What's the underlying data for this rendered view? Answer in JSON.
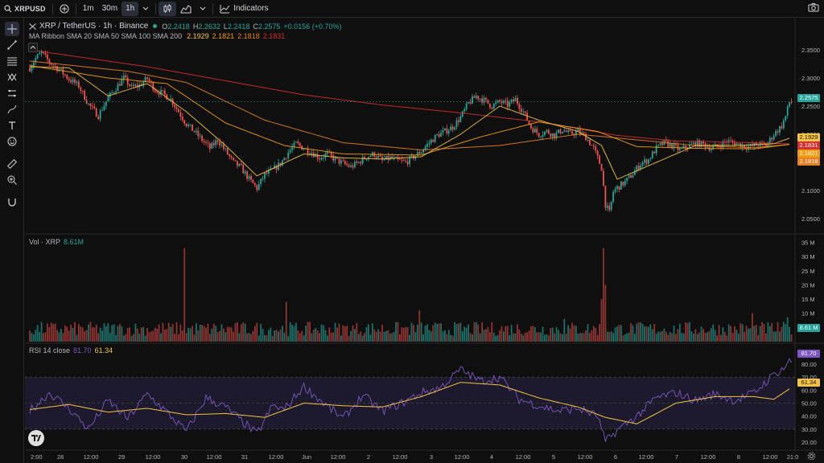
{
  "toolbar": {
    "symbol": "XRPUSD",
    "intervals": [
      "1m",
      "30m",
      "1h"
    ],
    "active_interval": "1h",
    "indicators_label": "Indicators"
  },
  "legend": {
    "title": "XRP / TetherUS · 1h · Binance",
    "ohlc": {
      "o_label": "O",
      "o": "2.2418",
      "h_label": "H",
      "h": "2.2632",
      "l_label": "L",
      "l": "2.2418",
      "c_label": "C",
      "c": "2.2575",
      "change": "+0.0156 (+0.70%)"
    },
    "ribbon_label": "MA Ribbon SMA 20 SMA 50 SMA 100 SMA 200",
    "ribbon_values": [
      "2.1929",
      "2.1821",
      "2.1818",
      "2.1831"
    ],
    "vol_label": "Vol · XRP",
    "vol_value": "8.61M",
    "rsi_label": "RSI 14 close",
    "rsi_value": "81.70",
    "rsi_ma": "61.34"
  },
  "price_axis": {
    "ticks": [
      "2.3500",
      "2.3000",
      "2.2500",
      "2.2000",
      "2.1500",
      "2.1000",
      "2.0500"
    ],
    "current_price": "2.2575",
    "ma_tags": [
      "2.1929",
      "2.1831",
      "2.1821",
      "2.1818"
    ]
  },
  "volume_axis": {
    "ticks": [
      "35 M",
      "30 M",
      "25 M",
      "20 M",
      "15 M",
      "10 M",
      "5 M"
    ],
    "current": "8.61 M"
  },
  "rsi_axis": {
    "ticks": [
      "80.00",
      "70.00",
      "60.00",
      "50.00",
      "40.00",
      "30.00",
      "20.00"
    ],
    "current": "81.70",
    "ma": "61.34"
  },
  "time_axis": {
    "labels": [
      "2:00",
      "28",
      "12:00",
      "29",
      "12:00",
      "30",
      "12:00",
      "31",
      "12:00",
      "Jun",
      "12:00",
      "2",
      "12:00",
      "3",
      "12:00",
      "4",
      "12:00",
      "5",
      "12:00",
      "6",
      "12:00",
      "7",
      "12:00",
      "8",
      "12:00",
      "21:0"
    ]
  },
  "colors": {
    "up": "#26a69a",
    "down": "#ef5350",
    "sma20": "#f5c242",
    "sma50": "#f39c12",
    "sma100": "#e67e22",
    "sma200": "#d32f2f",
    "rsi": "#7e57c2",
    "rsi_ma": "#f5c242"
  },
  "chart_data": {
    "type": "candlestick",
    "symbol": "XRP / TetherUS",
    "interval": "1h",
    "exchange": "Binance",
    "price_range": [
      2.03,
      2.37
    ],
    "price_path": [
      [
        0,
        2.318
      ],
      [
        3,
        2.335
      ],
      [
        6,
        2.345
      ],
      [
        10,
        2.328
      ],
      [
        15,
        2.315
      ],
      [
        20,
        2.298
      ],
      [
        25,
        2.286
      ],
      [
        30,
        2.253
      ],
      [
        35,
        2.233
      ],
      [
        40,
        2.265
      ],
      [
        44,
        2.282
      ],
      [
        48,
        2.3
      ],
      [
        52,
        2.283
      ],
      [
        56,
        2.287
      ],
      [
        60,
        2.299
      ],
      [
        64,
        2.279
      ],
      [
        68,
        2.272
      ],
      [
        72,
        2.262
      ],
      [
        76,
        2.24
      ],
      [
        80,
        2.218
      ],
      [
        84,
        2.205
      ],
      [
        88,
        2.19
      ],
      [
        92,
        2.175
      ],
      [
        96,
        2.19
      ],
      [
        100,
        2.17
      ],
      [
        104,
        2.15
      ],
      [
        108,
        2.14
      ],
      [
        112,
        2.12
      ],
      [
        116,
        2.104
      ],
      [
        120,
        2.128
      ],
      [
        124,
        2.136
      ],
      [
        128,
        2.148
      ],
      [
        132,
        2.168
      ],
      [
        136,
        2.183
      ],
      [
        140,
        2.175
      ],
      [
        144,
        2.168
      ],
      [
        148,
        2.158
      ],
      [
        152,
        2.165
      ],
      [
        156,
        2.155
      ],
      [
        160,
        2.148
      ],
      [
        164,
        2.142
      ],
      [
        168,
        2.15
      ],
      [
        172,
        2.16
      ],
      [
        176,
        2.165
      ],
      [
        180,
        2.153
      ],
      [
        184,
        2.158
      ],
      [
        188,
        2.153
      ],
      [
        192,
        2.15
      ],
      [
        196,
        2.16
      ],
      [
        200,
        2.17
      ],
      [
        204,
        2.185
      ],
      [
        208,
        2.198
      ],
      [
        212,
        2.205
      ],
      [
        216,
        2.213
      ],
      [
        220,
        2.23
      ],
      [
        224,
        2.255
      ],
      [
        228,
        2.268
      ],
      [
        232,
        2.26
      ],
      [
        236,
        2.25
      ],
      [
        240,
        2.258
      ],
      [
        244,
        2.252
      ],
      [
        248,
        2.262
      ],
      [
        252,
        2.24
      ],
      [
        256,
        2.212
      ],
      [
        260,
        2.2
      ],
      [
        264,
        2.205
      ],
      [
        268,
        2.198
      ],
      [
        272,
        2.208
      ],
      [
        276,
        2.2
      ],
      [
        280,
        2.205
      ],
      [
        284,
        2.195
      ],
      [
        288,
        2.175
      ],
      [
        292,
        2.14
      ],
      [
        294,
        2.075
      ],
      [
        296,
        2.06
      ],
      [
        298,
        2.098
      ],
      [
        300,
        2.105
      ],
      [
        304,
        2.115
      ],
      [
        308,
        2.13
      ],
      [
        312,
        2.148
      ],
      [
        316,
        2.155
      ],
      [
        320,
        2.175
      ],
      [
        324,
        2.185
      ],
      [
        328,
        2.18
      ],
      [
        332,
        2.172
      ],
      [
        336,
        2.178
      ],
      [
        340,
        2.184
      ],
      [
        344,
        2.182
      ],
      [
        348,
        2.175
      ],
      [
        352,
        2.18
      ],
      [
        356,
        2.188
      ],
      [
        360,
        2.184
      ],
      [
        364,
        2.18
      ],
      [
        368,
        2.178
      ],
      [
        372,
        2.182
      ],
      [
        376,
        2.18
      ],
      [
        380,
        2.2
      ],
      [
        384,
        2.215
      ],
      [
        386,
        2.232
      ],
      [
        388,
        2.257
      ]
    ],
    "sma_ribbon": {
      "sma20": [
        [
          0,
          2.32
        ],
        [
          20,
          2.318
        ],
        [
          40,
          2.268
        ],
        [
          60,
          2.29
        ],
        [
          80,
          2.24
        ],
        [
          100,
          2.18
        ],
        [
          116,
          2.126
        ],
        [
          140,
          2.165
        ],
        [
          160,
          2.158
        ],
        [
          180,
          2.156
        ],
        [
          200,
          2.16
        ],
        [
          220,
          2.2
        ],
        [
          240,
          2.25
        ],
        [
          260,
          2.225
        ],
        [
          280,
          2.205
        ],
        [
          292,
          2.18
        ],
        [
          300,
          2.12
        ],
        [
          320,
          2.15
        ],
        [
          340,
          2.18
        ],
        [
          360,
          2.18
        ],
        [
          380,
          2.183
        ],
        [
          388,
          2.193
        ]
      ],
      "sma50": [
        [
          0,
          2.322
        ],
        [
          40,
          2.3
        ],
        [
          70,
          2.29
        ],
        [
          100,
          2.22
        ],
        [
          130,
          2.18
        ],
        [
          160,
          2.165
        ],
        [
          200,
          2.163
        ],
        [
          230,
          2.195
        ],
        [
          260,
          2.222
        ],
        [
          290,
          2.205
        ],
        [
          310,
          2.178
        ],
        [
          340,
          2.175
        ],
        [
          370,
          2.174
        ],
        [
          388,
          2.182
        ]
      ],
      "sma100": [
        [
          0,
          2.33
        ],
        [
          50,
          2.312
        ],
        [
          80,
          2.292
        ],
        [
          120,
          2.225
        ],
        [
          160,
          2.185
        ],
        [
          200,
          2.172
        ],
        [
          240,
          2.18
        ],
        [
          280,
          2.2
        ],
        [
          310,
          2.19
        ],
        [
          340,
          2.18
        ],
        [
          370,
          2.176
        ],
        [
          388,
          2.182
        ]
      ],
      "sma200": [
        [
          0,
          2.35
        ],
        [
          60,
          2.32
        ],
        [
          100,
          2.295
        ],
        [
          140,
          2.27
        ],
        [
          180,
          2.252
        ],
        [
          220,
          2.238
        ],
        [
          260,
          2.222
        ],
        [
          300,
          2.198
        ],
        [
          330,
          2.188
        ],
        [
          360,
          2.186
        ],
        [
          388,
          2.183
        ]
      ]
    },
    "volume_range": [
      0,
      36
    ],
    "volume_spikes_M": [
      [
        79,
        33
      ],
      [
        131,
        14
      ],
      [
        199,
        11
      ],
      [
        273,
        8
      ],
      [
        292,
        15
      ],
      [
        293,
        33
      ],
      [
        294,
        20
      ],
      [
        369,
        10
      ],
      [
        387,
        8.61
      ]
    ],
    "rsi_range": [
      15,
      85
    ],
    "rsi_levels": [
      70,
      50,
      30
    ],
    "rsi_path": [
      [
        0,
        44
      ],
      [
        10,
        58
      ],
      [
        20,
        46
      ],
      [
        30,
        30
      ],
      [
        40,
        52
      ],
      [
        50,
        38
      ],
      [
        60,
        57
      ],
      [
        70,
        43
      ],
      [
        80,
        28
      ],
      [
        90,
        54
      ],
      [
        100,
        47
      ],
      [
        110,
        34
      ],
      [
        116,
        26
      ],
      [
        124,
        48
      ],
      [
        130,
        45
      ],
      [
        140,
        63
      ],
      [
        150,
        50
      ],
      [
        160,
        38
      ],
      [
        170,
        56
      ],
      [
        180,
        44
      ],
      [
        190,
        50
      ],
      [
        200,
        58
      ],
      [
        210,
        62
      ],
      [
        220,
        76
      ],
      [
        230,
        67
      ],
      [
        240,
        70
      ],
      [
        250,
        53
      ],
      [
        260,
        48
      ],
      [
        270,
        44
      ],
      [
        280,
        46
      ],
      [
        290,
        40
      ],
      [
        294,
        20
      ],
      [
        300,
        29
      ],
      [
        310,
        40
      ],
      [
        320,
        54
      ],
      [
        330,
        58
      ],
      [
        340,
        52
      ],
      [
        350,
        57
      ],
      [
        360,
        52
      ],
      [
        370,
        58
      ],
      [
        380,
        72
      ],
      [
        385,
        77
      ],
      [
        388,
        82
      ]
    ],
    "rsi_ma_path": [
      [
        0,
        45
      ],
      [
        20,
        49
      ],
      [
        40,
        43
      ],
      [
        60,
        46
      ],
      [
        80,
        41
      ],
      [
        100,
        42
      ],
      [
        120,
        39
      ],
      [
        140,
        50
      ],
      [
        160,
        48
      ],
      [
        180,
        47
      ],
      [
        200,
        55
      ],
      [
        220,
        66
      ],
      [
        240,
        64
      ],
      [
        260,
        54
      ],
      [
        280,
        47
      ],
      [
        294,
        39
      ],
      [
        310,
        34
      ],
      [
        330,
        50
      ],
      [
        350,
        55
      ],
      [
        370,
        55
      ],
      [
        380,
        53
      ],
      [
        388,
        61
      ]
    ]
  }
}
